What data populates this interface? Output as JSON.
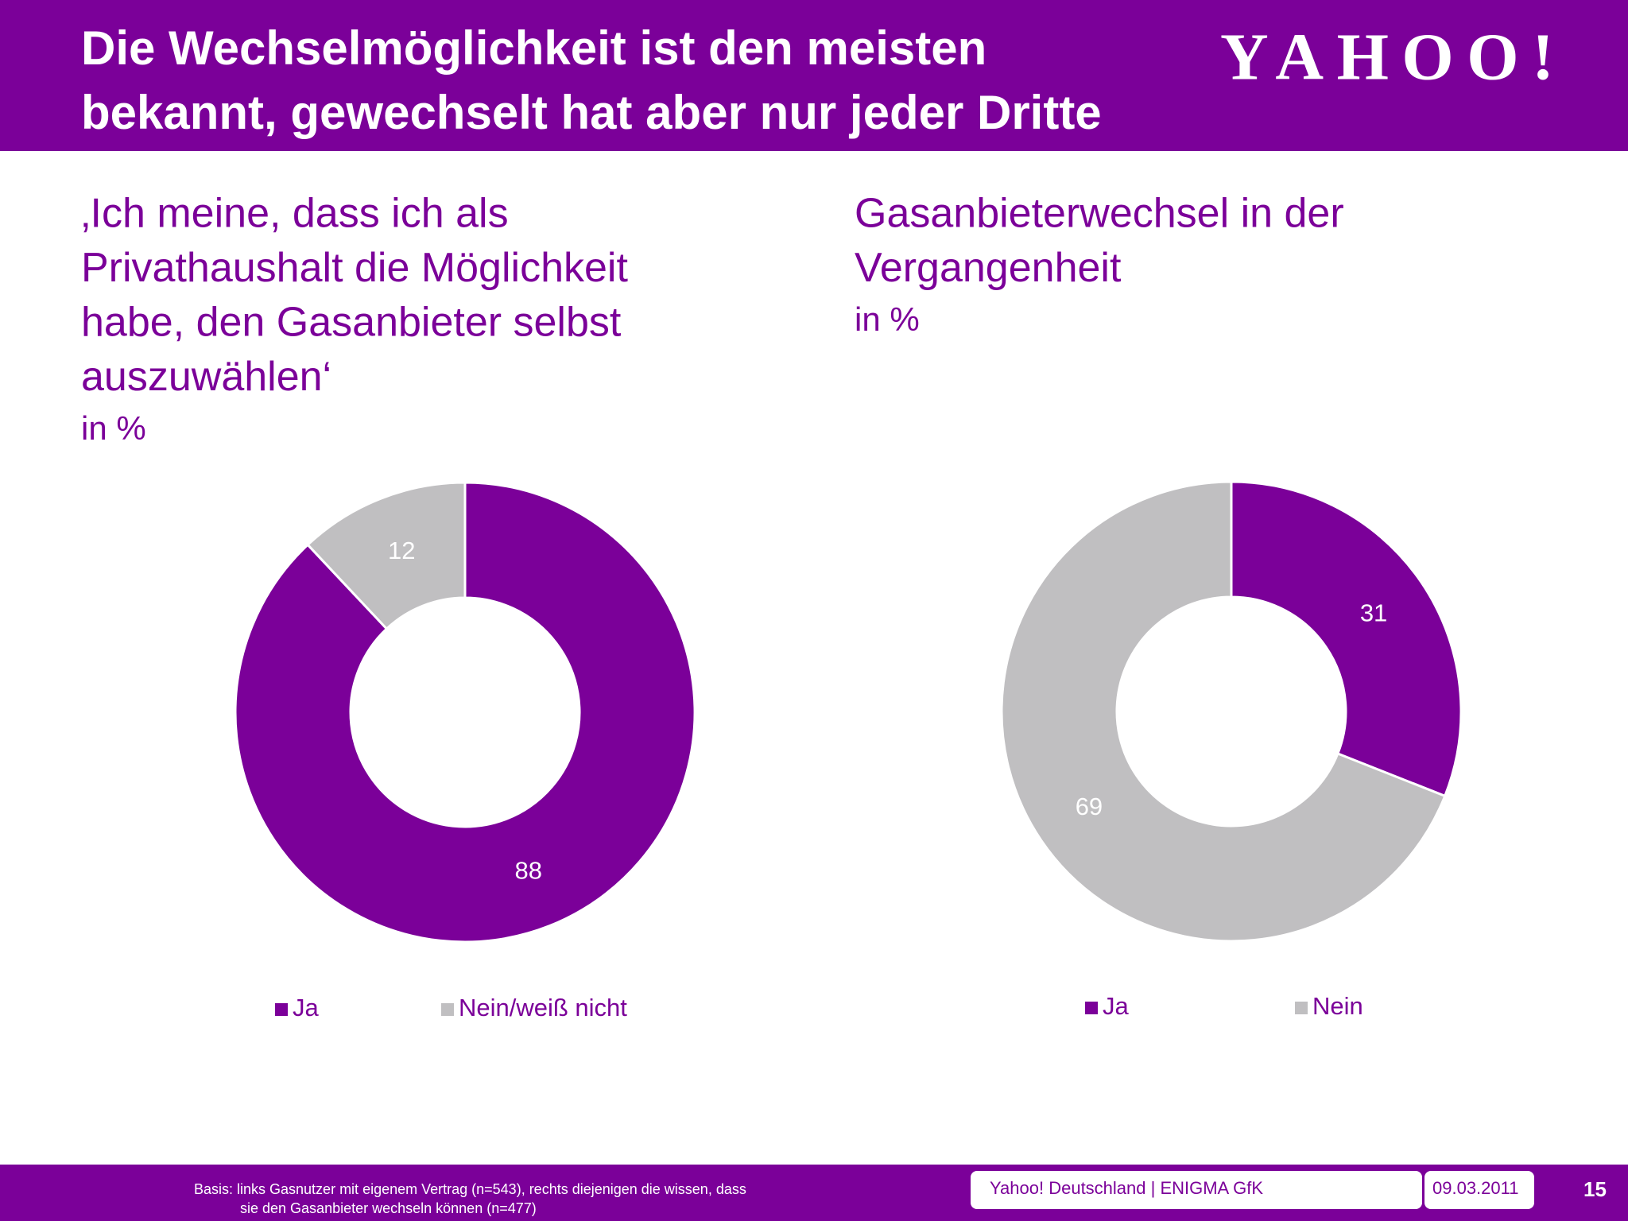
{
  "header": {
    "title": [
      "Die Wechselmöglichkeit ist den meisten",
      "bekannt, gewechselt hat aber nur jeder Dritte"
    ],
    "logo": "YAHOO!"
  },
  "chart_data": [
    {
      "type": "donut",
      "title": [
        "‚Ich meine, dass ich als",
        "Privathaushalt die Möglichkeit",
        "habe, den Gasanbieter selbst",
        "auszuwählen‘"
      ],
      "subtitle": "in %",
      "categories": [
        "Ja",
        "Nein/weiß nicht"
      ],
      "values": [
        88,
        12
      ],
      "colors": [
        "#7b0099",
        "#c0bfc1"
      ]
    },
    {
      "type": "donut",
      "title": [
        "Gasanbieterwechsel in der",
        "Vergangenheit"
      ],
      "subtitle": "in %",
      "categories": [
        "Ja",
        "Nein"
      ],
      "values": [
        31,
        69
      ],
      "colors": [
        "#7b0099",
        "#c0bfc1"
      ]
    }
  ],
  "footer": {
    "basis": [
      "Basis:  links Gasnutzer mit eigenem Vertrag (n=543), rechts diejenigen die wissen, dass",
      "sie den Gasanbieter wechseln können (n=477)"
    ],
    "source": "Yahoo! Deutschland | ENIGMA GfK",
    "date": "09.03.2011",
    "page": "15"
  }
}
